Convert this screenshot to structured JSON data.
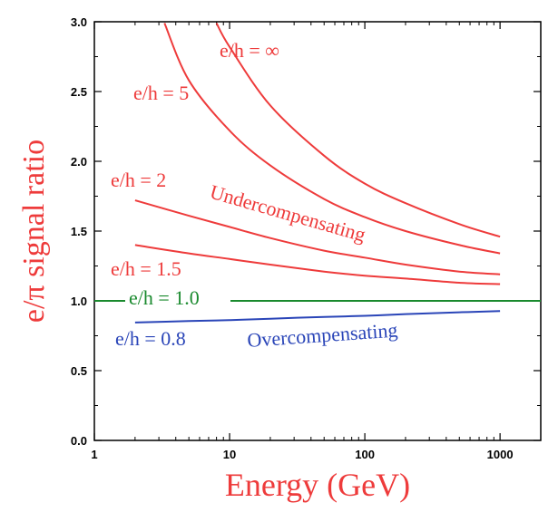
{
  "chart_data": {
    "type": "line",
    "title": "",
    "xlabel": "Energy (GeV)",
    "ylabel": "e/π signal ratio",
    "x_scale": "log",
    "xlim": [
      1,
      2000
    ],
    "ylim": [
      0.0,
      3.0
    ],
    "x_ticks": [
      1,
      10,
      100,
      1000
    ],
    "x_tick_labels": [
      "1",
      "10",
      "100",
      "1000"
    ],
    "y_ticks": [
      0.0,
      0.5,
      1.0,
      1.5,
      2.0,
      2.5,
      3.0
    ],
    "y_tick_labels": [
      "0.0",
      "0.5",
      "1.0",
      "1.5",
      "2.0",
      "2.5",
      "3.0"
    ],
    "grid": false,
    "legend": "none",
    "series": [
      {
        "name": "e/h = ∞",
        "color": "#ee3b3b",
        "x": [
          8,
          10,
          20,
          50,
          100,
          200,
          500,
          1000
        ],
        "y": [
          2.99,
          2.82,
          2.4,
          2.04,
          1.84,
          1.7,
          1.55,
          1.46
        ]
      },
      {
        "name": "e/h = 5",
        "color": "#ee3b3b",
        "x": [
          3.3,
          5,
          10,
          20,
          50,
          100,
          200,
          500,
          1000
        ],
        "y": [
          2.99,
          2.58,
          2.22,
          1.97,
          1.73,
          1.6,
          1.5,
          1.4,
          1.34
        ]
      },
      {
        "name": "e/h = 2",
        "color": "#ee3b3b",
        "x": [
          2,
          5,
          10,
          20,
          50,
          100,
          200,
          500,
          1000
        ],
        "y": [
          1.72,
          1.61,
          1.53,
          1.45,
          1.36,
          1.31,
          1.26,
          1.21,
          1.19
        ]
      },
      {
        "name": "e/h = 1.5",
        "color": "#ee3b3b",
        "x": [
          2,
          5,
          10,
          20,
          50,
          100,
          200,
          500,
          1000
        ],
        "y": [
          1.4,
          1.34,
          1.3,
          1.26,
          1.21,
          1.18,
          1.16,
          1.13,
          1.12
        ]
      },
      {
        "name": "e/h = 1.0",
        "color": "#1a8a2e",
        "x": [
          1,
          2000
        ],
        "y": [
          1.0,
          1.0
        ]
      },
      {
        "name": "e/h = 0.8",
        "color": "#2a45b8",
        "x": [
          2,
          5,
          10,
          20,
          50,
          100,
          200,
          500,
          1000
        ],
        "y": [
          0.845,
          0.855,
          0.862,
          0.872,
          0.885,
          0.893,
          0.905,
          0.918,
          0.927
        ]
      }
    ],
    "annotations": [
      {
        "text": "Undercompensating",
        "color": "#ee3b3b"
      },
      {
        "text": "Overcompensating",
        "color": "#2a45b8"
      }
    ]
  }
}
